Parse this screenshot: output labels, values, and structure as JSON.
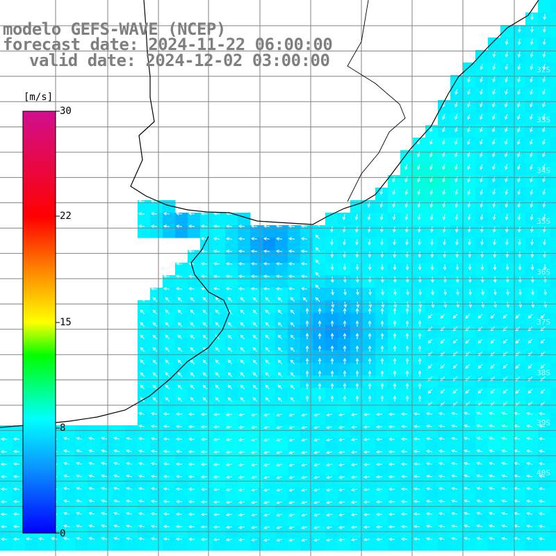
{
  "title": {
    "line1": "modelo GEFS-WAVE (NCEP)",
    "line2": "forecast date: 2024-11-22 06:00:00",
    "line3": "valid date: 2024-12-02 03:00:00"
  },
  "colorbar": {
    "unit": "[m/s]",
    "ticks": [
      {
        "label": "30",
        "value": 30
      },
      {
        "label": "22",
        "value": 22
      },
      {
        "label": "15",
        "value": 15
      },
      {
        "label": "8",
        "value": 8
      },
      {
        "label": "0",
        "value": 0
      }
    ],
    "stops": [
      "#0000ff",
      "#0a9aff",
      "#00ffff",
      "#00ff00",
      "#ffff00",
      "#ff8800",
      "#ff0000",
      "#d10f8e"
    ]
  },
  "lat_labels": [
    "32S",
    "33S",
    "34S",
    "35S",
    "36S",
    "37S",
    "38S",
    "39S",
    "40S"
  ],
  "colors": {
    "land": "#ffffff",
    "coastline": "#000000",
    "grid": "#808080",
    "arrow": "#ffffff",
    "title_text": "#7f7f7f"
  }
}
